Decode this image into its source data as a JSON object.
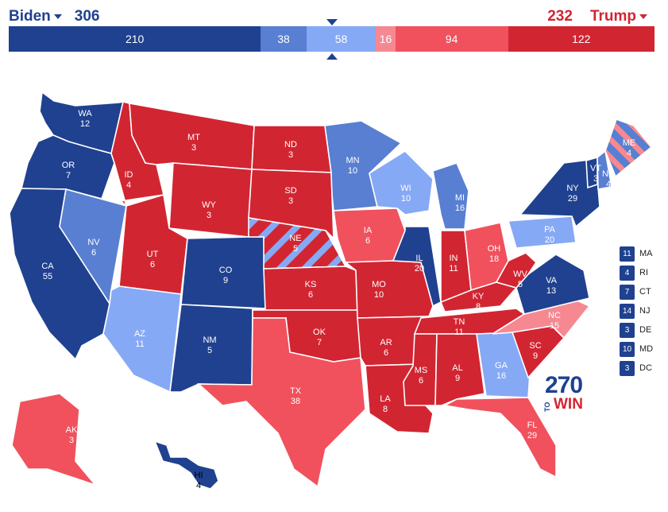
{
  "header": {
    "left_candidate": "Biden",
    "left_total": "306",
    "right_total": "232",
    "right_candidate": "Trump"
  },
  "bar_segments": [
    {
      "value": "210",
      "color": "#1f418f"
    },
    {
      "value": "38",
      "color": "#587fd1"
    },
    {
      "value": "58",
      "color": "#86a9f5"
    },
    {
      "value": "16",
      "color": "#f68891"
    },
    {
      "value": "94",
      "color": "#f0515d"
    },
    {
      "value": "122",
      "color": "#d22532"
    }
  ],
  "colors": {
    "safe_d": "#1f418f",
    "likely_d": "#587fd1",
    "lean_d": "#86a9f5",
    "tilt_r": "#f68891",
    "likely_r": "#f0515d",
    "safe_r": "#d22532"
  },
  "states": [
    {
      "abbr": "WA",
      "ev": "12",
      "rating": "safe_d"
    },
    {
      "abbr": "OR",
      "ev": "7",
      "rating": "safe_d"
    },
    {
      "abbr": "CA",
      "ev": "55",
      "rating": "safe_d"
    },
    {
      "abbr": "NV",
      "ev": "6",
      "rating": "likely_d"
    },
    {
      "abbr": "ID",
      "ev": "4",
      "rating": "safe_r"
    },
    {
      "abbr": "MT",
      "ev": "3",
      "rating": "safe_r"
    },
    {
      "abbr": "WY",
      "ev": "3",
      "rating": "safe_r"
    },
    {
      "abbr": "UT",
      "ev": "6",
      "rating": "safe_r"
    },
    {
      "abbr": "AZ",
      "ev": "11",
      "rating": "lean_d"
    },
    {
      "abbr": "CO",
      "ev": "9",
      "rating": "safe_d"
    },
    {
      "abbr": "NM",
      "ev": "5",
      "rating": "safe_d"
    },
    {
      "abbr": "ND",
      "ev": "3",
      "rating": "safe_r"
    },
    {
      "abbr": "SD",
      "ev": "3",
      "rating": "safe_r"
    },
    {
      "abbr": "NE",
      "ev": "5",
      "rating": "safe_r"
    },
    {
      "abbr": "KS",
      "ev": "6",
      "rating": "safe_r"
    },
    {
      "abbr": "OK",
      "ev": "7",
      "rating": "safe_r"
    },
    {
      "abbr": "TX",
      "ev": "38",
      "rating": "likely_r"
    },
    {
      "abbr": "MN",
      "ev": "10",
      "rating": "likely_d"
    },
    {
      "abbr": "IA",
      "ev": "6",
      "rating": "likely_r"
    },
    {
      "abbr": "MO",
      "ev": "10",
      "rating": "safe_r"
    },
    {
      "abbr": "AR",
      "ev": "6",
      "rating": "safe_r"
    },
    {
      "abbr": "LA",
      "ev": "8",
      "rating": "safe_r"
    },
    {
      "abbr": "WI",
      "ev": "10",
      "rating": "lean_d"
    },
    {
      "abbr": "IL",
      "ev": "20",
      "rating": "safe_d"
    },
    {
      "abbr": "MI",
      "ev": "16",
      "rating": "likely_d"
    },
    {
      "abbr": "IN",
      "ev": "11",
      "rating": "safe_r"
    },
    {
      "abbr": "OH",
      "ev": "18",
      "rating": "likely_r"
    },
    {
      "abbr": "KY",
      "ev": "8",
      "rating": "safe_r"
    },
    {
      "abbr": "TN",
      "ev": "11",
      "rating": "safe_r"
    },
    {
      "abbr": "MS",
      "ev": "6",
      "rating": "safe_r"
    },
    {
      "abbr": "AL",
      "ev": "9",
      "rating": "safe_r"
    },
    {
      "abbr": "GA",
      "ev": "16",
      "rating": "lean_d"
    },
    {
      "abbr": "FL",
      "ev": "29",
      "rating": "likely_r"
    },
    {
      "abbr": "SC",
      "ev": "9",
      "rating": "safe_r"
    },
    {
      "abbr": "NC",
      "ev": "15",
      "rating": "tilt_r"
    },
    {
      "abbr": "VA",
      "ev": "13",
      "rating": "safe_d"
    },
    {
      "abbr": "WV",
      "ev": "5",
      "rating": "safe_r"
    },
    {
      "abbr": "PA",
      "ev": "20",
      "rating": "lean_d"
    },
    {
      "abbr": "NY",
      "ev": "29",
      "rating": "safe_d"
    },
    {
      "abbr": "VT",
      "ev": "3",
      "rating": "safe_d"
    },
    {
      "abbr": "NH",
      "ev": "4",
      "rating": "likely_d"
    },
    {
      "abbr": "ME",
      "ev": "4",
      "rating": "likely_d"
    },
    {
      "abbr": "AK",
      "ev": "3",
      "rating": "likely_r"
    },
    {
      "abbr": "HI",
      "ev": "4",
      "rating": "safe_d"
    }
  ],
  "legend_states": [
    {
      "ev": "11",
      "abbr": "MA"
    },
    {
      "ev": "4",
      "abbr": "RI"
    },
    {
      "ev": "7",
      "abbr": "CT"
    },
    {
      "ev": "14",
      "abbr": "NJ"
    },
    {
      "ev": "3",
      "abbr": "DE"
    },
    {
      "ev": "10",
      "abbr": "MD"
    },
    {
      "ev": "3",
      "abbr": "DC"
    }
  ],
  "logo": {
    "number": "270",
    "to": "TO",
    "win": "WIN"
  }
}
